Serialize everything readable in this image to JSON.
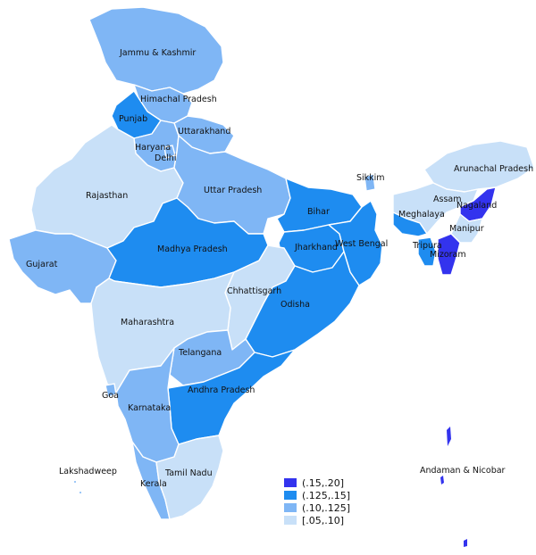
{
  "colors": {
    "c1": "#3333ee",
    "c2": "#1e8cf0",
    "c3": "#7fb6f5",
    "c4": "#c8e0f8"
  },
  "legend": [
    {
      "label": "(.15,.20]",
      "color": "#3333ee"
    },
    {
      "label": "(.125,.15]",
      "color": "#1e8cf0"
    },
    {
      "label": "(.10,.125]",
      "color": "#7fb6f5"
    },
    {
      "label": "[.05,.10]",
      "color": "#c8e0f8"
    }
  ],
  "states": {
    "jk": "Jammu & Kashmir",
    "hp": "Himachal Pradesh",
    "pb": "Punjab",
    "uk": "Uttarakhand",
    "hr": "Haryana",
    "dl": "Delhi",
    "rj": "Rajasthan",
    "up": "Uttar Pradesh",
    "sk": "Sikkim",
    "ar": "Arunachal Pradesh",
    "as": "Assam",
    "nl": "Nagaland",
    "br": "Bihar",
    "ml": "Meghalaya",
    "mn": "Manipur",
    "jh": "Jharkhand",
    "wb": "West Bengal",
    "tr": "Tripura",
    "mz": "Mizoram",
    "gj": "Gujarat",
    "mp": "Madhya Pradesh",
    "cg": "Chhattisgarh",
    "od": "Odisha",
    "mh": "Maharashtra",
    "tg": "Telangana",
    "ap": "Andhra Pradesh",
    "ga": "Goa",
    "ka": "Karnataka",
    "ld": "Lakshadweep",
    "tn": "Tamil Nadu",
    "kl": "Kerala",
    "an": "Andaman & Nicobar"
  }
}
